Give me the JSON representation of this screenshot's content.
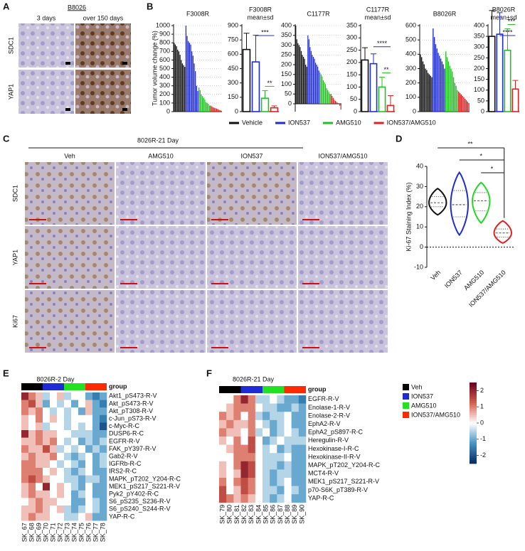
{
  "panel_a": {
    "label": "A",
    "title": "B8026",
    "columns": [
      "3 days",
      "over 150 days"
    ],
    "rows": [
      "SDC1",
      "YAP1"
    ]
  },
  "panel_b": {
    "label": "B",
    "ylabel": "Tumor volume change (%)",
    "legend": [
      {
        "name": "Vehicle",
        "color": "#111111"
      },
      {
        "name": "ION537",
        "color": "#1f2bd6"
      },
      {
        "name": "AMG510",
        "color": "#22c122"
      },
      {
        "name": "ION537/AMG510",
        "color": "#e02020"
      }
    ],
    "charts": [
      {
        "type": "waterfall",
        "title": [
          "F3008R"
        ],
        "ylim": [
          0,
          1000
        ],
        "yticks": [
          0,
          100,
          200,
          300,
          400,
          500,
          600,
          700,
          800,
          900,
          1000
        ],
        "series": [
          {
            "values": [
              800,
              780,
              760,
              720,
              700,
              660,
              600,
              560,
              540,
              520
            ]
          },
          {
            "values": [
              1000,
              880,
              820,
              800,
              780,
              700,
              650,
              560,
              470,
              300,
              240
            ]
          },
          {
            "values": [
              280,
              250,
              200,
              180,
              160,
              140,
              110,
              100,
              90,
              70
            ]
          },
          {
            "values": [
              70,
              60,
              50,
              45,
              40,
              35,
              30,
              20,
              15,
              10
            ]
          }
        ]
      },
      {
        "type": "bar",
        "title": [
          "F3008R",
          "mean±sd"
        ],
        "ylim": [
          0,
          900
        ],
        "yticks": [
          0,
          150,
          300,
          450,
          600,
          750,
          900
        ],
        "values": [
          650,
          520,
          140,
          40
        ],
        "errors": [
          170,
          280,
          80,
          20
        ],
        "annotations": [
          "***",
          "**"
        ]
      },
      {
        "type": "waterfall",
        "title": [
          "C1177R"
        ],
        "ylim": [
          -40,
          400
        ],
        "yticks": [
          0,
          50,
          100,
          150,
          200,
          250,
          300,
          350,
          400
        ],
        "series": [
          {
            "values": [
              400,
              330,
              310,
              300,
              290,
              270,
              250,
              240,
              230,
              200,
              190
            ]
          },
          {
            "values": [
              350,
              330,
              290,
              270,
              250,
              240,
              230,
              210,
              200,
              190,
              170
            ]
          },
          {
            "values": [
              160,
              150,
              140,
              120,
              110,
              100,
              80,
              70,
              60,
              50
            ]
          },
          {
            "values": [
              50,
              40,
              30,
              20,
              15,
              10,
              5,
              0,
              -10,
              -30
            ]
          }
        ]
      },
      {
        "type": "bar",
        "title": [
          "C1177R",
          "mean±sd"
        ],
        "ylim": [
          0,
          350
        ],
        "yticks": [
          0,
          50,
          100,
          150,
          200,
          250,
          300,
          350
        ],
        "values": [
          210,
          195,
          100,
          25
        ],
        "errors": [
          50,
          40,
          40,
          40
        ],
        "annotations": [
          "****",
          "**"
        ]
      },
      {
        "type": "waterfall",
        "title": [
          "B8026R"
        ],
        "ylim": [
          0,
          600
        ],
        "yticks": [
          0,
          100,
          200,
          300,
          400,
          500,
          600
        ],
        "series": [
          {
            "values": [
              400,
              380,
              350,
              330,
              300,
              290,
              270,
              260,
              250,
              240
            ]
          },
          {
            "values": [
              580,
              520,
              470,
              440,
              410,
              390,
              370,
              350,
              330,
              300
            ]
          },
          {
            "values": [
              420,
              380,
              350,
              320,
              300,
              280,
              240,
              200,
              180,
              150
            ]
          },
          {
            "values": [
              140,
              130,
              120,
              110,
              100,
              90,
              80,
              70,
              60
            ]
          }
        ]
      },
      {
        "type": "bar",
        "title": [
          "B8026R",
          "mean±sd"
        ],
        "ylim": [
          0,
          400
        ],
        "yticks": [
          0,
          50,
          100,
          150,
          200,
          250,
          300,
          350,
          400
        ],
        "values": [
          350,
          360,
          285,
          105
        ],
        "errors": [
          120,
          100,
          100,
          40
        ],
        "annotations": [
          "****",
          "***"
        ]
      }
    ]
  },
  "panel_c": {
    "label": "C",
    "title": "8026R-21 Day",
    "columns": [
      "Veh",
      "AMG510",
      "ION537",
      "ION537/AMG510"
    ],
    "rows": [
      "SDC1",
      "YAP1",
      "Ki67"
    ]
  },
  "panel_d": {
    "label": "D",
    "ylabel": "Ki-67 Staining Index (%)",
    "ylim": [
      -10,
      40
    ],
    "yticks": [
      -10,
      0,
      10,
      20,
      30,
      40
    ],
    "groups": [
      {
        "name": "Veh",
        "color": "#111111",
        "min": 16,
        "q1": 20,
        "median": 22,
        "q3": 25,
        "max": 29
      },
      {
        "name": "ION537",
        "color": "#1f2bd6",
        "min": 6,
        "q1": 15,
        "median": 21,
        "q3": 28,
        "max": 37
      },
      {
        "name": "AMG510",
        "color": "#22d822",
        "min": 12,
        "q1": 18,
        "median": 23,
        "q3": 27,
        "max": 32
      },
      {
        "name": "ION537/AMG510",
        "color": "#e02020",
        "min": 2,
        "q1": 5,
        "median": 7,
        "q3": 9,
        "max": 13
      }
    ],
    "annotations": [
      "**",
      "*",
      "*"
    ]
  },
  "heat_legend": {
    "groups": [
      {
        "name": "Veh",
        "color": "#000000"
      },
      {
        "name": "ION537",
        "color": "#1f2bd6"
      },
      {
        "name": "AMG510",
        "color": "#22e022"
      },
      {
        "name": "ION537/AMG510",
        "color": "#ff2a00"
      }
    ],
    "colorbar": {
      "lim": [
        -2.5,
        2.5
      ],
      "ticks": [
        -2,
        -1,
        0,
        1,
        2
      ]
    }
  },
  "panel_e": {
    "label": "E",
    "title": "8026R-2 Day",
    "group_label": "group",
    "columns": [
      "SK_67",
      "SK_68",
      "SK_69",
      "SK_70",
      "SK_71",
      "SK_72",
      "SK_73",
      "SK_74",
      "SK_75",
      "SK_76",
      "SK_77",
      "SK_78"
    ],
    "rows": [
      "Akt1_pS473-R-V",
      "Akt_pS473-R-V",
      "Akt_pT308-R-V",
      "c-Jun_pS73-R-V",
      "c-Myc-R-C",
      "DUSP6-R-C",
      "EGFR-R-V",
      "FAK_pY397-R-V",
      "Gab2-R-V",
      "IGFRb-R-C",
      "IRS2-R-C",
      "MAPK_pT202_Y204-R-C",
      "MEK1_pS217_S221-R-V",
      "Pyk2_pY402-R-C",
      "S6_pS235_S236-R-V",
      "S6_pS240_S244-R-V",
      "YAP-R-C"
    ],
    "values": [
      [
        2,
        1,
        0.5,
        -0.5,
        0,
        0.5,
        -0.5,
        0,
        0,
        -1,
        -1.5,
        -1
      ],
      [
        1,
        1.5,
        0.5,
        -1,
        0,
        -0.5,
        0,
        -1,
        0,
        0.5,
        -1,
        -1.5
      ],
      [
        1,
        0.5,
        1,
        0,
        -0.5,
        0,
        -0.5,
        0,
        -1,
        0.5,
        -1,
        -1
      ],
      [
        0.5,
        0,
        1,
        0,
        0.5,
        0,
        -0.5,
        0,
        0,
        0,
        -1,
        -1.5
      ],
      [
        0.5,
        0,
        0.5,
        -0.5,
        0,
        0,
        -0.5,
        0,
        -0.5,
        0,
        -1,
        -2
      ],
      [
        2,
        0.5,
        1,
        0.5,
        0.5,
        0,
        0,
        -0.5,
        -0.5,
        -0.5,
        -1,
        -1
      ],
      [
        0.5,
        0.5,
        1,
        0.5,
        1,
        0,
        -0.5,
        0,
        -1,
        -0.5,
        -1,
        -0.5
      ],
      [
        1,
        0.5,
        0.5,
        1.5,
        0.5,
        -0.5,
        0,
        -0.5,
        0,
        -1,
        -0.5,
        -1
      ],
      [
        0.5,
        1,
        0.5,
        0.5,
        1,
        0,
        -0.5,
        -1,
        -0.5,
        0,
        -1,
        -0.5
      ],
      [
        1,
        1,
        0.5,
        0.5,
        0,
        -0.5,
        0,
        -0.5,
        -1,
        0,
        -1,
        -0.5
      ],
      [
        1,
        1,
        1,
        0,
        0.5,
        0,
        -0.5,
        -1,
        -0.5,
        0,
        -1,
        -1
      ],
      [
        1,
        1.5,
        1,
        0.5,
        0,
        0,
        -0.5,
        -0.5,
        -1,
        -0.5,
        -0.5,
        -1
      ],
      [
        0.5,
        1,
        0,
        2,
        0,
        0.5,
        0,
        -0.5,
        -1,
        0,
        -1,
        -1
      ],
      [
        0.5,
        1,
        0.5,
        0.5,
        0,
        0.5,
        0,
        -1,
        -0.5,
        0,
        -1,
        -1
      ],
      [
        0,
        0.5,
        1,
        0.5,
        0.5,
        0,
        0,
        -1,
        -1,
        0,
        -0.5,
        -1
      ],
      [
        0.5,
        0.5,
        1,
        0.5,
        0,
        0.5,
        -0.5,
        -1,
        -0.5,
        0,
        -0.5,
        -1
      ],
      [
        0.5,
        1,
        0.5,
        0.5,
        0,
        0,
        -0.5,
        -0.5,
        0,
        0.5,
        -1,
        -1
      ]
    ]
  },
  "panel_f": {
    "label": "F",
    "title": "8026R-21 Day",
    "group_label": "group",
    "columns": [
      "SK_79",
      "SK_80",
      "SK_81",
      "SK_82",
      "SK_83",
      "SK_84",
      "SK_85",
      "SK_86",
      "SK_87",
      "SK_88",
      "SK_89",
      "SK_90"
    ],
    "rows": [
      "EGFR-R-V",
      "Enolase-1-R-V",
      "Enolase-2-R-V",
      "EphA2-R-V",
      "EphA2_pS897-R-C",
      "Heregulin-R-V",
      "Hexokinase-I-R-C",
      "Hexokinase-II-R-V",
      "MAPK_pT202_Y204-R-C",
      "MCT4-R-V",
      "MEK1_pS217_S221-R-V",
      "p70-S6K_pT389-R-V",
      "YAP-R-C"
    ],
    "values": [
      [
        0,
        0,
        1,
        2,
        1,
        -0.5,
        -0.5,
        0,
        -0.5,
        -1,
        -1,
        -1.5
      ],
      [
        0,
        0.5,
        1,
        1,
        1,
        0,
        -0.5,
        -0.5,
        -1,
        -1,
        -0.5,
        -1
      ],
      [
        1,
        0.5,
        1,
        0,
        1,
        -0.5,
        -1,
        -0.5,
        -0.5,
        0,
        -1,
        -1
      ],
      [
        0.5,
        1,
        0.5,
        0.5,
        1,
        0,
        -0.5,
        -1,
        -0.5,
        0,
        -1,
        -1
      ],
      [
        1,
        0.5,
        0.5,
        0,
        1,
        -0.5,
        0,
        -1,
        -0.5,
        0,
        -0.5,
        -1
      ],
      [
        0.5,
        0,
        1,
        0,
        1.5,
        0,
        -1,
        -0.5,
        0,
        -0.5,
        -0.5,
        -0.5
      ],
      [
        0,
        0.5,
        1,
        1,
        1.5,
        0,
        -0.5,
        0,
        -1,
        -0.5,
        -1,
        -1
      ],
      [
        0,
        0,
        1,
        1,
        1,
        0,
        -0.5,
        -0.5,
        -0.5,
        0,
        -1,
        -1
      ],
      [
        0.5,
        0,
        1,
        2,
        1.5,
        0,
        -0.5,
        -0.5,
        -1,
        -0.5,
        -1,
        -1
      ],
      [
        0.5,
        0,
        0.5,
        2,
        1.5,
        0,
        -0.5,
        -1,
        -0.5,
        -0.5,
        -1,
        -1
      ],
      [
        1,
        0,
        1,
        1.5,
        1,
        0,
        -0.5,
        -1,
        -0.5,
        0,
        -1,
        -1
      ],
      [
        1.5,
        0,
        0.5,
        1.5,
        1,
        0,
        -0.5,
        -0.5,
        -1,
        0,
        -0.5,
        -1
      ],
      [
        1.5,
        1,
        0.5,
        1,
        0.5,
        0,
        -0.5,
        -1,
        -0.5,
        0,
        -1,
        -1
      ]
    ]
  }
}
